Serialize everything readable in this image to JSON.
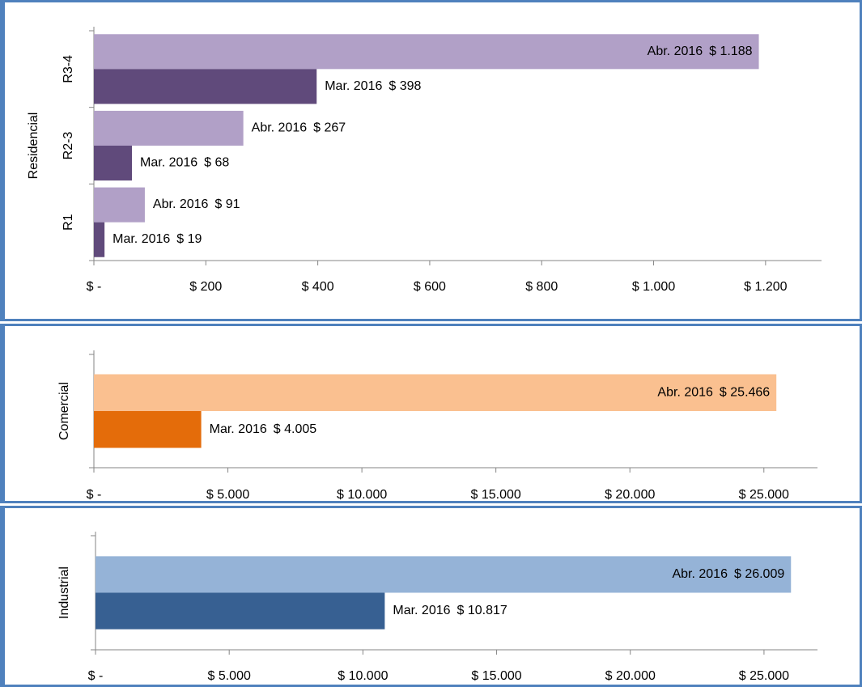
{
  "chart_data": [
    {
      "type": "bar",
      "ylabel": "Residencial",
      "categories": [
        "R1",
        "R2-3",
        "R3-4"
      ],
      "series": [
        {
          "name": "Abr. 2016",
          "color": "#b1a0c7",
          "values": [
            91,
            267,
            1188
          ],
          "value_labels": [
            "$ 91",
            "$ 267",
            "$ 1.188"
          ]
        },
        {
          "name": "Mar. 2016",
          "color": "#604a7b",
          "values": [
            19,
            68,
            398
          ],
          "value_labels": [
            "$ 19",
            "$ 68",
            "$ 398"
          ]
        }
      ],
      "xlim": [
        0,
        1300
      ],
      "xticks": [
        {
          "value": 0,
          "label": "$ -"
        },
        {
          "value": 200,
          "label": "$ 200"
        },
        {
          "value": 400,
          "label": "$ 400"
        },
        {
          "value": 600,
          "label": "$ 600"
        },
        {
          "value": 800,
          "label": "$ 800"
        },
        {
          "value": 1000,
          "label": "$ 1.000"
        },
        {
          "value": 1200,
          "label": "$ 1.200"
        }
      ]
    },
    {
      "type": "bar",
      "ylabel": "Comercial",
      "categories": [
        null
      ],
      "series": [
        {
          "name": "Abr. 2016",
          "color": "#fac090",
          "values": [
            25466
          ],
          "value_labels": [
            "$ 25.466"
          ]
        },
        {
          "name": "Mar. 2016",
          "color": "#e46c0a",
          "values": [
            4005
          ],
          "value_labels": [
            "$ 4.005"
          ]
        }
      ],
      "xlim": [
        0,
        27000
      ],
      "xticks": [
        {
          "value": 0,
          "label": "$ -"
        },
        {
          "value": 5000,
          "label": "$ 5.000"
        },
        {
          "value": 10000,
          "label": "$ 10.000"
        },
        {
          "value": 15000,
          "label": "$ 15.000"
        },
        {
          "value": 20000,
          "label": "$ 20.000"
        },
        {
          "value": 25000,
          "label": "$ 25.000"
        }
      ]
    },
    {
      "type": "bar",
      "ylabel": "Industrial",
      "categories": [
        null
      ],
      "series": [
        {
          "name": "Abr. 2016",
          "color": "#95b3d7",
          "values": [
            26009
          ],
          "value_labels": [
            "$ 26.009"
          ]
        },
        {
          "name": "Mar. 2016",
          "color": "#376092",
          "values": [
            10817
          ],
          "value_labels": [
            "$ 10.817"
          ]
        }
      ],
      "xlim": [
        0,
        27000
      ],
      "xticks": [
        {
          "value": 0,
          "label": "$ -"
        },
        {
          "value": 5000,
          "label": "$ 5.000"
        },
        {
          "value": 10000,
          "label": "$ 10.000"
        },
        {
          "value": 15000,
          "label": "$ 15.000"
        },
        {
          "value": 20000,
          "label": "$ 20.000"
        },
        {
          "value": 25000,
          "label": "$ 25.000"
        }
      ]
    }
  ]
}
